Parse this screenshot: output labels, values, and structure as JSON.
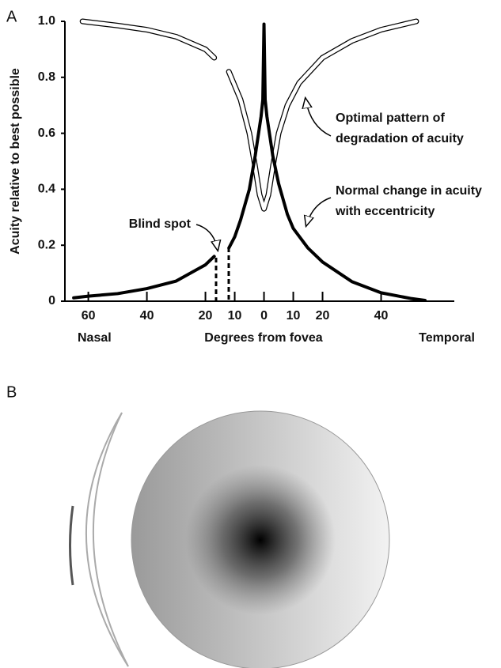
{
  "chart_data": {
    "type": "line",
    "panel_labels": [
      "A",
      "B"
    ],
    "ylabel": "Acuity relative to best possible",
    "xlabel": "Degrees from fovea",
    "x_end_labels": [
      "Nasal",
      "Temporal"
    ],
    "xlim": [
      -68,
      65
    ],
    "ylim": [
      0,
      1
    ],
    "xticks": [
      {
        "value": -60,
        "label": "60"
      },
      {
        "value": -40,
        "label": "40"
      },
      {
        "value": -20,
        "label": "20"
      },
      {
        "value": -10,
        "label": "10"
      },
      0,
      10,
      20,
      40
    ],
    "yticks": [
      0,
      0.2,
      0.4,
      0.6,
      0.8,
      {
        "value": 1,
        "label": "1.0"
      }
    ],
    "annotations": [
      {
        "lines": [
          "Blind spot"
        ]
      },
      {
        "lines": [
          "Optimal pattern of",
          "degradation of acuity"
        ]
      },
      {
        "lines": [
          "Normal change in acuity",
          "with eccentricity"
        ]
      }
    ],
    "series": [
      {
        "style": "outline",
        "color": "#000000",
        "x": [
          -62,
          -50,
          -40,
          -30,
          -20,
          -17,
          -14,
          -12,
          -8,
          -5,
          -3,
          -1.5,
          0,
          1.5,
          3,
          5,
          8,
          12,
          20,
          30,
          40,
          52
        ],
        "values": [
          1.0,
          0.985,
          0.97,
          0.945,
          0.9,
          0.87,
          null,
          0.82,
          0.72,
          0.6,
          0.48,
          0.38,
          0.33,
          0.38,
          0.48,
          0.6,
          0.7,
          0.78,
          0.87,
          0.93,
          0.97,
          1.0
        ]
      },
      {
        "style": "solid",
        "color": "#000000",
        "x": [
          -65,
          -60,
          -50,
          -40,
          -30,
          -20,
          -17,
          -14,
          -12,
          -10,
          -8,
          -5,
          -3,
          -1,
          -0.4,
          0,
          0.4,
          1,
          3,
          5,
          8,
          10,
          15,
          20,
          30,
          40,
          50,
          55
        ],
        "values": [
          0.012,
          0.018,
          0.027,
          0.045,
          0.072,
          0.13,
          0.16,
          null,
          0.19,
          0.23,
          0.29,
          0.4,
          0.52,
          0.66,
          0.72,
          0.99,
          0.72,
          0.66,
          0.52,
          0.42,
          0.31,
          0.26,
          0.19,
          0.14,
          0.07,
          0.03,
          0.01,
          0.003
        ]
      }
    ]
  }
}
